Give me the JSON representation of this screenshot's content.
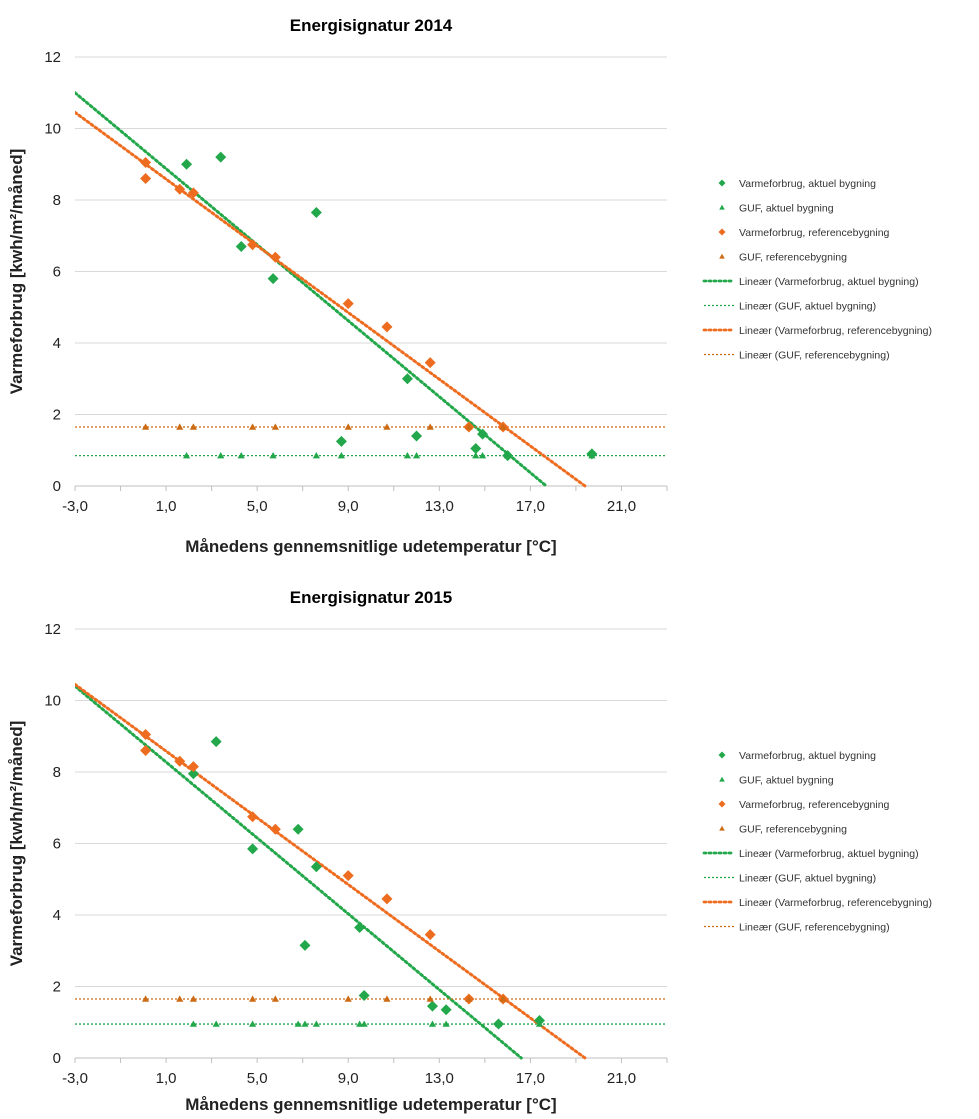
{
  "chart_data": [
    {
      "type": "scatter",
      "title": "Energisignatur 2014",
      "xlabel": "Månedens gennemsnitlige udetemperatur [°C]",
      "ylabel": "Varmeforbrug [kwh/m²/måned]",
      "xlim": [
        -3,
        23
      ],
      "ylim": [
        0,
        12
      ],
      "xticks": [
        "-3,0",
        "1,0",
        "5,0",
        "9,0",
        "13,0",
        "17,0",
        "21,0"
      ],
      "yticks": [
        "0",
        "2",
        "4",
        "6",
        "8",
        "10",
        "12"
      ],
      "grid": "horizontal",
      "legend_position": "right",
      "series": [
        {
          "name": "Varmeforbrug, aktuel bygning",
          "marker": "diamond",
          "color": "#22a84a",
          "points": [
            [
              1.9,
              9.0
            ],
            [
              3.4,
              9.2
            ],
            [
              4.3,
              6.7
            ],
            [
              5.7,
              5.8
            ],
            [
              7.6,
              7.65
            ],
            [
              8.7,
              1.25
            ],
            [
              11.6,
              3.0
            ],
            [
              12.0,
              1.4
            ],
            [
              14.6,
              1.05
            ],
            [
              14.9,
              1.45
            ],
            [
              16.0,
              0.85
            ],
            [
              19.7,
              0.9
            ]
          ]
        },
        {
          "name": "GUF, aktuel bygning",
          "marker": "triangle",
          "color": "#22a84a",
          "points": [
            [
              1.9,
              0.85
            ],
            [
              3.4,
              0.85
            ],
            [
              4.3,
              0.85
            ],
            [
              5.7,
              0.85
            ],
            [
              7.6,
              0.85
            ],
            [
              8.7,
              0.85
            ],
            [
              11.6,
              0.85
            ],
            [
              12.0,
              0.85
            ],
            [
              14.6,
              0.85
            ],
            [
              14.9,
              0.85
            ],
            [
              16.0,
              0.85
            ],
            [
              19.7,
              0.85
            ]
          ]
        },
        {
          "name": "Varmeforbrug, referencebygning",
          "marker": "diamond",
          "color": "#ee6c1f",
          "points": [
            [
              0.1,
              9.05
            ],
            [
              0.1,
              8.6
            ],
            [
              1.6,
              8.3
            ],
            [
              2.2,
              8.2
            ],
            [
              4.8,
              6.75
            ],
            [
              5.8,
              6.4
            ],
            [
              9.0,
              5.1
            ],
            [
              10.7,
              4.45
            ],
            [
              12.6,
              3.45
            ],
            [
              14.3,
              1.65
            ],
            [
              15.8,
              1.65
            ]
          ]
        },
        {
          "name": "GUF, referencebygning",
          "marker": "triangle",
          "color": "#cc6b14",
          "points": [
            [
              0.1,
              1.65
            ],
            [
              1.6,
              1.65
            ],
            [
              2.2,
              1.65
            ],
            [
              4.8,
              1.65
            ],
            [
              5.8,
              1.65
            ],
            [
              9.0,
              1.65
            ],
            [
              10.7,
              1.65
            ],
            [
              12.6,
              1.65
            ],
            [
              14.3,
              1.65
            ],
            [
              15.8,
              1.65
            ]
          ]
        },
        {
          "name": "Lineær (Varmeforbrug, aktuel bygning)",
          "line": "dotted-thick",
          "color": "#22a84a",
          "points": [
            [
              -3.0,
              11.0
            ],
            [
              17.7,
              0.0
            ]
          ]
        },
        {
          "name": "Lineær (GUF, aktuel bygning)",
          "line": "dotted-thin",
          "color": "#22a84a",
          "points": [
            [
              -3.0,
              0.85
            ],
            [
              23.0,
              0.85
            ]
          ]
        },
        {
          "name": "Lineær (Varmeforbrug, referencebygning)",
          "line": "dotted-thick",
          "color": "#ee6c1f",
          "points": [
            [
              -3.0,
              10.45
            ],
            [
              19.4,
              0.0
            ]
          ]
        },
        {
          "name": "Lineær (GUF, referencebygning)",
          "line": "dotted-thin",
          "color": "#cc6b14",
          "points": [
            [
              -3.0,
              1.65
            ],
            [
              23.0,
              1.65
            ]
          ]
        }
      ]
    },
    {
      "type": "scatter",
      "title": "Energisignatur 2015",
      "xlabel": "Månedens gennemsnitlige udetemperatur [°C]",
      "ylabel": "Varmeforbrug [kwh/m²/måned]",
      "xlim": [
        -3,
        23
      ],
      "ylim": [
        0,
        12
      ],
      "xticks": [
        "-3,0",
        "1,0",
        "5,0",
        "9,0",
        "13,0",
        "17,0",
        "21,0"
      ],
      "yticks": [
        "0",
        "2",
        "4",
        "6",
        "8",
        "10",
        "12"
      ],
      "grid": "horizontal",
      "legend_position": "right",
      "series": [
        {
          "name": "Varmeforbrug, aktuel bygning",
          "marker": "diamond",
          "color": "#22a84a",
          "points": [
            [
              2.2,
              7.95
            ],
            [
              3.2,
              8.85
            ],
            [
              4.8,
              5.85
            ],
            [
              6.8,
              6.4
            ],
            [
              7.1,
              3.15
            ],
            [
              7.6,
              5.35
            ],
            [
              9.5,
              3.65
            ],
            [
              9.7,
              1.75
            ],
            [
              12.7,
              1.45
            ],
            [
              13.3,
              1.35
            ],
            [
              15.6,
              0.95
            ],
            [
              17.4,
              1.05
            ]
          ]
        },
        {
          "name": "GUF, aktuel bygning",
          "marker": "triangle",
          "color": "#22a84a",
          "points": [
            [
              2.2,
              0.95
            ],
            [
              3.2,
              0.95
            ],
            [
              4.8,
              0.95
            ],
            [
              6.8,
              0.95
            ],
            [
              7.1,
              0.95
            ],
            [
              7.6,
              0.95
            ],
            [
              9.5,
              0.95
            ],
            [
              9.7,
              0.95
            ],
            [
              12.7,
              0.95
            ],
            [
              13.3,
              0.95
            ],
            [
              15.6,
              0.95
            ],
            [
              17.4,
              0.95
            ]
          ]
        },
        {
          "name": "Varmeforbrug, referencebygning",
          "marker": "diamond",
          "color": "#ee6c1f",
          "points": [
            [
              0.1,
              9.05
            ],
            [
              0.1,
              8.6
            ],
            [
              1.6,
              8.3
            ],
            [
              2.2,
              8.15
            ],
            [
              4.8,
              6.75
            ],
            [
              5.8,
              6.4
            ],
            [
              9.0,
              5.1
            ],
            [
              10.7,
              4.45
            ],
            [
              12.6,
              3.45
            ],
            [
              14.3,
              1.65
            ],
            [
              15.8,
              1.65
            ]
          ]
        },
        {
          "name": "GUF, referencebygning",
          "marker": "triangle",
          "color": "#cc6b14",
          "points": [
            [
              0.1,
              1.65
            ],
            [
              1.6,
              1.65
            ],
            [
              2.2,
              1.65
            ],
            [
              4.8,
              1.65
            ],
            [
              5.8,
              1.65
            ],
            [
              9.0,
              1.65
            ],
            [
              10.7,
              1.65
            ],
            [
              12.6,
              1.65
            ],
            [
              14.3,
              1.65
            ],
            [
              15.8,
              1.65
            ]
          ]
        },
        {
          "name": "Lineær (Varmeforbrug, aktuel bygning)",
          "line": "dotted-thick",
          "color": "#22a84a",
          "points": [
            [
              -3.0,
              10.4
            ],
            [
              16.6,
              0.0
            ]
          ]
        },
        {
          "name": "Lineær (GUF, aktuel bygning)",
          "line": "dotted-thin",
          "color": "#22a84a",
          "points": [
            [
              -3.0,
              0.95
            ],
            [
              23.0,
              0.95
            ]
          ]
        },
        {
          "name": "Lineær (Varmeforbrug, referencebygning)",
          "line": "dotted-thick",
          "color": "#ee6c1f",
          "points": [
            [
              -3.0,
              10.45
            ],
            [
              19.4,
              0.0
            ]
          ]
        },
        {
          "name": "Lineær (GUF, referencebygning)",
          "line": "dotted-thin",
          "color": "#cc6b14",
          "points": [
            [
              -3.0,
              1.65
            ],
            [
              23.0,
              1.65
            ]
          ]
        }
      ]
    }
  ]
}
